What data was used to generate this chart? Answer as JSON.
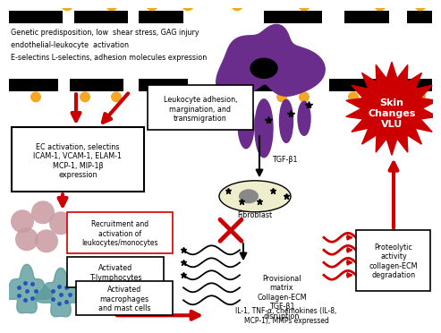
{
  "bg_color": "#ffffff",
  "top_text_line1": "Genetic predisposition, low  shear stress, GAG injury",
  "top_text_line2": "endothelial-leukocyte  activation",
  "top_text_line3": "E-selectins L-selectins, adhesion molecules expression",
  "box1_text": "EC activation, selectins\nICAM-1, VCAM-1, ELAM-1\nMCP-1, MIP-1β\nexpression",
  "box2_text": "Leukocyte adhesion,\nmargination, and\ntransmigration",
  "box3_text": "Recruitment and\nactivation of\nleukocytes/monocytes",
  "box4_text": "Activated\nT-lymphocytes",
  "box5_text": "Activated\nmacrophages\nand mast cells",
  "box6_text": "Provisional\nmatrix\nCollagen-ECM\nTGF-β1\ndisruption",
  "box7_text": "Proteolytic\nactivity\ncollagen-ECM\ndegradation",
  "skin_text": "Skin\nChanges\nVLU",
  "tgf_text": "TGF-β1",
  "fibroblast_text": "Fibroblast",
  "il_text": "IL-1, TNF-α, chemokines (IL-8,\nMCP-1), MMPs expressed",
  "black_bar_color": "#000000",
  "orange_color": "#F5A623",
  "red_color": "#CC0000",
  "purple_color": "#6B2D8B",
  "pink_cell_color": "#C899A0",
  "teal_color": "#5B9B9B",
  "blue_dot_color": "#2255BB",
  "fibroblast_body_color": "#EEEECC",
  "fibroblast_nucleus_color": "#888888"
}
